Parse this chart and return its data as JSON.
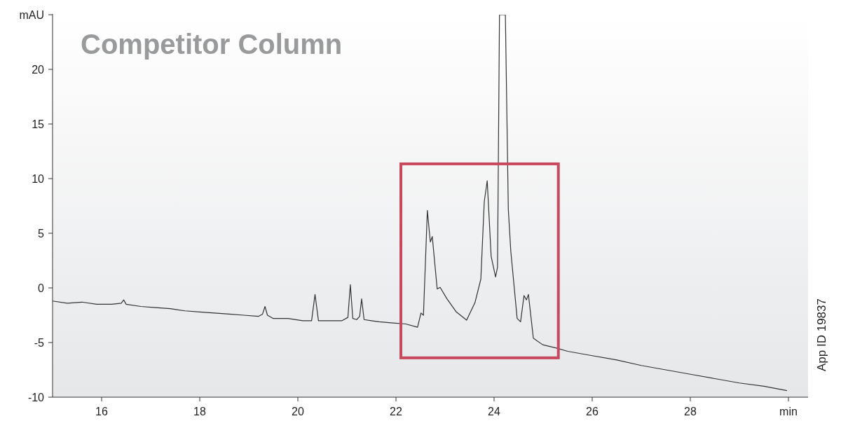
{
  "chart_data": {
    "type": "line",
    "title": "Competitor Column",
    "annotations": [
      "App ID 19837"
    ],
    "xlim": [
      15,
      30.4
    ],
    "xticks": [
      16,
      18,
      20,
      22,
      24,
      26,
      28,
      {
        "value": 30,
        "label": "min"
      }
    ],
    "ylim": [
      -10,
      25
    ],
    "yticks": [
      -10,
      -5,
      0,
      5,
      10,
      15,
      20,
      {
        "value": 25,
        "label": "mAU"
      }
    ],
    "grid": false,
    "marker": "none",
    "line_style": "solid",
    "series": [
      {
        "color": "#333333",
        "x": [
          15,
          15.3,
          15.6,
          15.9,
          16.2,
          16.4,
          16.45,
          16.5,
          16.8,
          17.1,
          17.4,
          17.7,
          18,
          18.3,
          18.6,
          18.9,
          19.2,
          19.28,
          19.33,
          19.38,
          19.5,
          19.8,
          20.1,
          20.28,
          20.35,
          20.42,
          20.6,
          20.9,
          21.02,
          21.07,
          21.12,
          21.2,
          21.26,
          21.3,
          21.35,
          21.5,
          21.66,
          21.9,
          22.2,
          22.44,
          22.51,
          22.56,
          22.64,
          22.7,
          22.74,
          22.84,
          22.9,
          23.04,
          23.23,
          23.44,
          23.61,
          23.73,
          23.8,
          23.86,
          23.94,
          24.03,
          24.07,
          24.11,
          24.15,
          24.2,
          24.23,
          24.29,
          24.34,
          24.47,
          24.54,
          24.61,
          24.66,
          24.7,
          24.8,
          24.99,
          25.27,
          25.5,
          26,
          26.5,
          27,
          27.5,
          28,
          28.5,
          29,
          29.5,
          29.97
        ],
        "values": [
          -1.2,
          -1.4,
          -1.3,
          -1.5,
          -1.5,
          -1.4,
          -1.1,
          -1.5,
          -1.7,
          -1.8,
          -1.9,
          -2.1,
          -2.2,
          -2.3,
          -2.4,
          -2.5,
          -2.6,
          -2.4,
          -1.7,
          -2.5,
          -2.8,
          -2.8,
          -3.0,
          -3.0,
          -0.6,
          -3.0,
          -3.0,
          -3.0,
          -2.7,
          0.3,
          -2.8,
          -2.9,
          -2.6,
          -1.0,
          -2.9,
          -3.0,
          -3.1,
          -3.2,
          -3.3,
          -3.6,
          -2.3,
          -2.5,
          7.1,
          4.2,
          4.7,
          -0.1,
          0.05,
          -1.0,
          -2.2,
          -2.95,
          -1.35,
          0.8,
          7.9,
          9.8,
          2.9,
          1.0,
          1.9,
          25,
          25,
          25,
          25,
          7.2,
          3.4,
          -2.8,
          -3.1,
          -0.7,
          -1.1,
          -0.6,
          -4.6,
          -5.2,
          -5.5,
          -5.8,
          -6.2,
          -6.6,
          -7.1,
          -7.5,
          -7.9,
          -8.3,
          -8.7,
          -9.0,
          -9.4
        ]
      }
    ]
  }
}
